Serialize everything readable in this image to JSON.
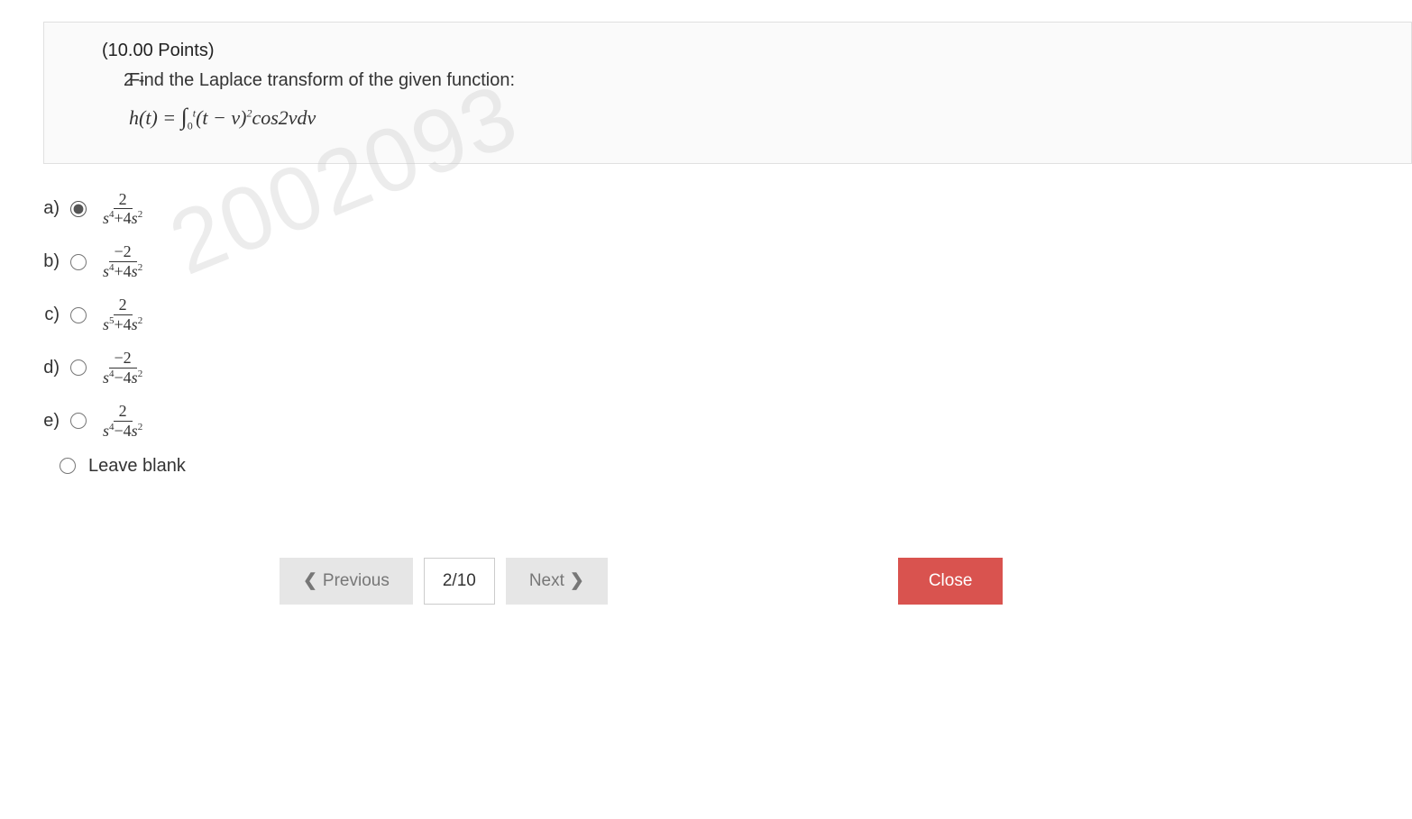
{
  "question": {
    "points_label": "(10.00 Points)",
    "number": "2 -",
    "text": "Find the Laplace transform of the given function:",
    "equation_left": "h(t) = ",
    "int_lower": "0",
    "int_upper": "t",
    "integrand_a": "(t − v)",
    "integrand_pow": "2",
    "integrand_b": "cos2vdv"
  },
  "watermark": "2002093",
  "options": [
    {
      "label": "a)",
      "num": "2",
      "den_base1": "s",
      "den_pow1": "4",
      "den_op": "+",
      "den_coef": "4",
      "den_base2": "s",
      "den_pow2": "2",
      "selected": true
    },
    {
      "label": "b)",
      "num": "−2",
      "den_base1": "s",
      "den_pow1": "4",
      "den_op": "+",
      "den_coef": "4",
      "den_base2": "s",
      "den_pow2": "2",
      "selected": false
    },
    {
      "label": "c)",
      "num": "2",
      "den_base1": "s",
      "den_pow1": "5",
      "den_op": "+",
      "den_coef": "4",
      "den_base2": "s",
      "den_pow2": "2",
      "selected": false
    },
    {
      "label": "d)",
      "num": "−2",
      "den_base1": "s",
      "den_pow1": "4",
      "den_op": "−",
      "den_coef": "4",
      "den_base2": "s",
      "den_pow2": "2",
      "selected": false
    },
    {
      "label": "e)",
      "num": "2",
      "den_base1": "s",
      "den_pow1": "4",
      "den_op": "−",
      "den_coef": "4",
      "den_base2": "s",
      "den_pow2": "2",
      "selected": false
    }
  ],
  "leave_blank_label": "Leave blank",
  "nav": {
    "previous": "Previous",
    "page_indicator": "2/10",
    "next": "Next",
    "close": "Close"
  },
  "colors": {
    "close_button": "#d9534f",
    "grey_button": "#e6e6e6",
    "border": "#e0e0e0"
  }
}
